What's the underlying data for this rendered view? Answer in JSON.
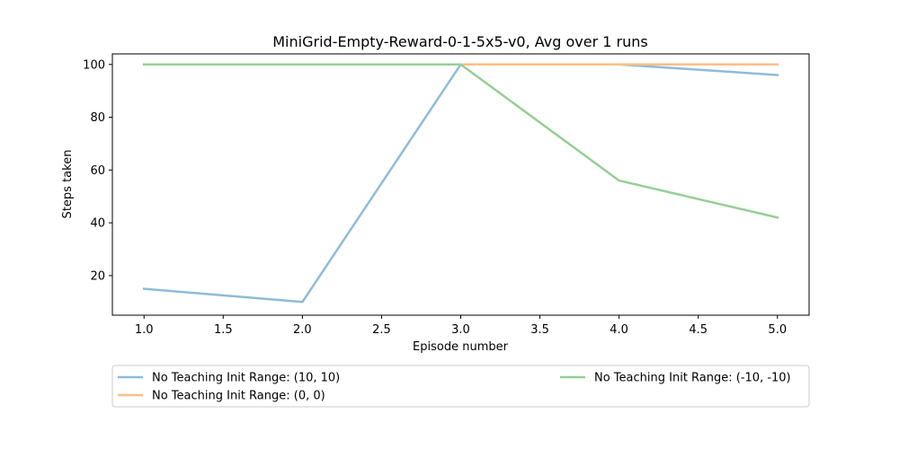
{
  "chart_data": {
    "type": "line",
    "title": "MiniGrid-Empty-Reward-0-1-5x5-v0, Avg over 1 runs",
    "xlabel": "Episode number",
    "ylabel": "Steps taken",
    "xlim": [
      0.8,
      5.2
    ],
    "ylim": [
      5,
      104
    ],
    "xticks": [
      1.0,
      1.5,
      2.0,
      2.5,
      3.0,
      3.5,
      4.0,
      4.5,
      5.0
    ],
    "xtick_labels": [
      "1.0",
      "1.5",
      "2.0",
      "2.5",
      "3.0",
      "3.5",
      "4.0",
      "4.5",
      "5.0"
    ],
    "yticks": [
      20,
      40,
      60,
      80,
      100
    ],
    "ytick_labels": [
      "20",
      "40",
      "60",
      "80",
      "100"
    ],
    "grid": false,
    "legend_position": "below plot",
    "x": [
      1,
      2,
      3,
      4,
      5
    ],
    "series": [
      {
        "name": "No Teaching Init Range: (10, 10)",
        "values": [
          15,
          10,
          100,
          100,
          96
        ],
        "color": "#8fbbd9"
      },
      {
        "name": "No Teaching Init Range: (0, 0)",
        "values": [
          100,
          100,
          100,
          100,
          100
        ],
        "color": "#ffbf86"
      },
      {
        "name": "No Teaching Init Range: (-10, -10)",
        "values": [
          100,
          100,
          100,
          56,
          42
        ],
        "color": "#95cf95"
      }
    ]
  }
}
